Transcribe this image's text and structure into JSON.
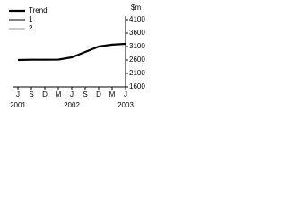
{
  "chart_data": {
    "type": "line",
    "y_unit": "$m",
    "categories": [
      "J",
      "S",
      "D",
      "M",
      "J",
      "S",
      "D",
      "M",
      "J"
    ],
    "year_labels": [
      {
        "category_index": 0,
        "label": "2001"
      },
      {
        "category_index": 4,
        "label": "2002"
      },
      {
        "category_index": 8,
        "label": "2003"
      }
    ],
    "series": [
      {
        "name": "Trend",
        "color": "#000000",
        "width": 2.2,
        "values": [
          2600,
          2610,
          2610,
          2615,
          2700,
          2900,
          3100,
          3170,
          3200
        ]
      },
      {
        "name": "1",
        "color": "#000000",
        "width": 1,
        "values": [
          2590,
          2620,
          2600,
          2620,
          2690,
          2910,
          3090,
          3180,
          3190
        ]
      },
      {
        "name": "2",
        "color": "#999999",
        "width": 1,
        "values": [
          2610,
          2600,
          2620,
          2610,
          2710,
          2890,
          3110,
          3160,
          3210
        ]
      }
    ],
    "ylim": [
      1600,
      4100
    ],
    "yticks": [
      1600,
      2100,
      2600,
      3100,
      3600,
      4100
    ],
    "legend": "top-left"
  }
}
